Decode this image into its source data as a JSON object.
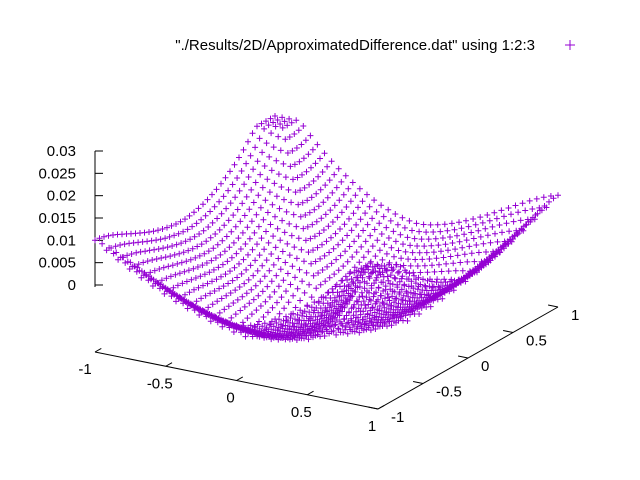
{
  "chart_data": {
    "type": "surface-points-3d",
    "series": [
      {
        "name": "\"./Results/2D/ApproximatedDifference.dat\" using 1:2:3",
        "marker": "+",
        "color": "#9400d3",
        "grid_x": [
          -1,
          -0.95,
          -0.9,
          -0.85,
          -0.8,
          -0.75,
          -0.7,
          -0.65,
          -0.6,
          -0.55,
          -0.5,
          -0.45,
          -0.4,
          -0.35,
          -0.3,
          -0.25,
          -0.2,
          -0.15,
          -0.1,
          -0.05,
          0,
          0.05,
          0.1,
          0.15,
          0.2,
          0.25,
          0.3,
          0.35,
          0.4,
          0.45,
          0.5,
          0.55,
          0.6,
          0.65,
          0.7,
          0.75,
          0.8,
          0.85,
          0.9,
          0.95,
          1
        ],
        "grid_y": [
          -1,
          -0.95,
          -0.9,
          -0.85,
          -0.8,
          -0.75,
          -0.7,
          -0.65,
          -0.6,
          -0.55,
          -0.5,
          -0.45,
          -0.4,
          -0.35,
          -0.3,
          -0.25,
          -0.2,
          -0.15,
          -0.1,
          -0.05,
          0,
          0.05,
          0.1,
          0.15,
          0.2,
          0.25,
          0.3,
          0.35,
          0.4,
          0.45,
          0.5,
          0.55,
          0.6,
          0.65,
          0.7,
          0.75,
          0.8,
          0.85,
          0.9,
          0.95,
          1
        ],
        "z_range": [
          0,
          0.03
        ]
      }
    ],
    "x_ticks": [
      "-1",
      "-0.5",
      "0",
      "0.5",
      "1"
    ],
    "x_tick_values": [
      -1,
      -0.5,
      0,
      0.5,
      1
    ],
    "y_ticks": [
      "-1",
      "-0.5",
      "0",
      "0.5",
      "1"
    ],
    "y_tick_values": [
      -1,
      -0.5,
      0,
      0.5,
      1
    ],
    "z_ticks": [
      "0",
      "0.005",
      "0.01",
      "0.015",
      "0.02",
      "0.025",
      "0.03"
    ],
    "z_tick_values": [
      0,
      0.005,
      0.01,
      0.015,
      0.02,
      0.025,
      0.03
    ],
    "xlim": [
      -1,
      1
    ],
    "ylim": [
      -1,
      1
    ],
    "zlim": [
      0,
      0.03
    ],
    "grid": false,
    "legend_position": "top-right",
    "title": "",
    "xlabel": "",
    "ylabel": "",
    "zlabel": ""
  }
}
